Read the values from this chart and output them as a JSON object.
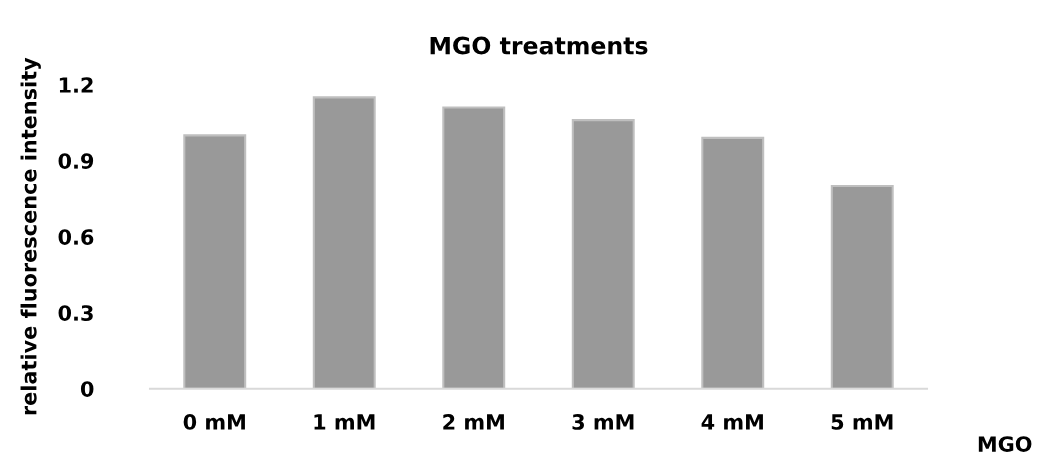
{
  "chart_data": {
    "type": "bar",
    "title": "MGO treatments",
    "xlabel": "MGO",
    "ylabel": "relative fluorescence intensity",
    "categories": [
      "0 mM",
      "1 mM",
      "2 mM",
      "3 mM",
      "4 mM",
      "5 mM"
    ],
    "values": [
      1.0,
      1.15,
      1.11,
      1.06,
      0.99,
      0.8
    ],
    "color": "#999999",
    "ylim": [
      0,
      1.2
    ],
    "yticks": [
      0,
      0.3,
      0.6,
      0.9,
      1.2
    ],
    "grid": false
  }
}
